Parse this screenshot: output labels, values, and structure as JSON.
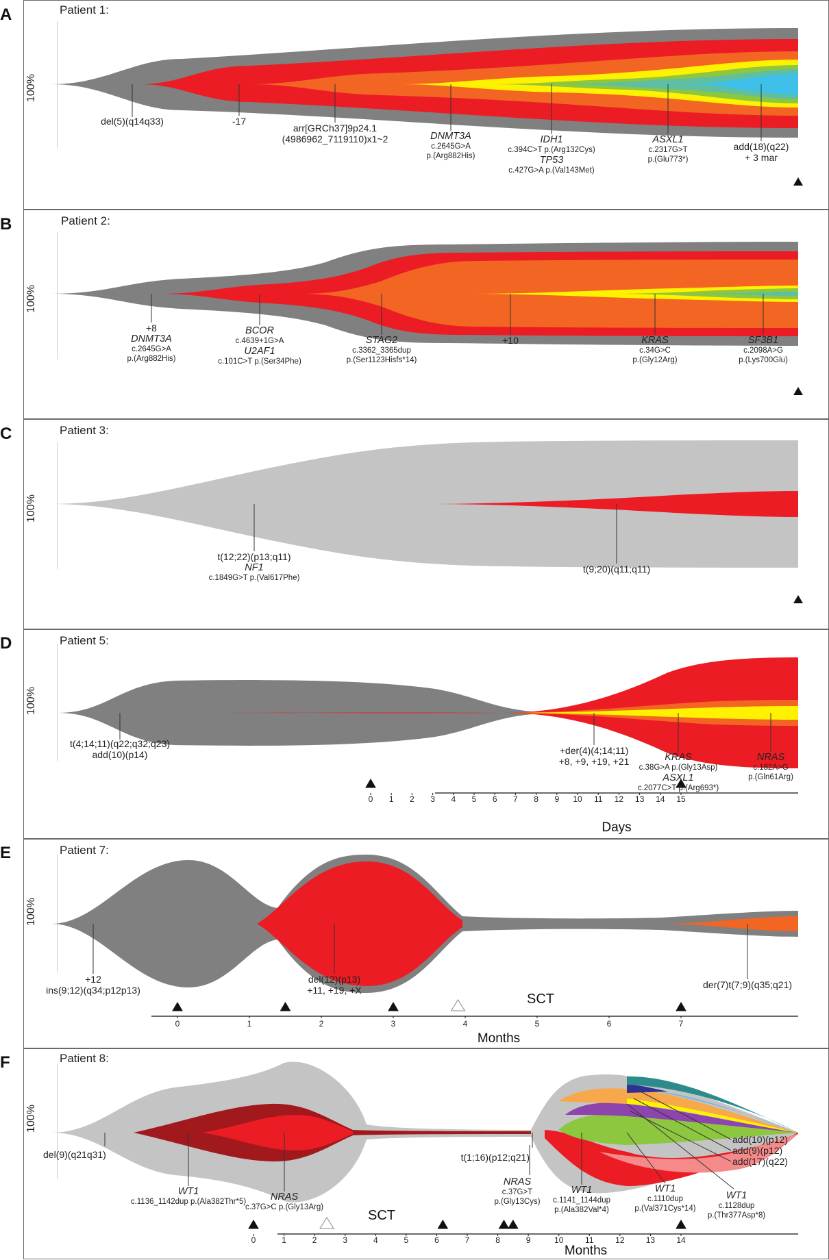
{
  "figure": {
    "panels": [
      {
        "letter": "A",
        "title": "Patient 1:",
        "ylabel": "100%",
        "annotations": [
          {
            "cyto": [
              "del(5)(q14q33)"
            ]
          },
          {
            "cyto": [
              "-17"
            ]
          },
          {
            "cyto": [
              "arr[GRCh37]9p24.1",
              "(4986962_7119110)x1~2"
            ]
          },
          {
            "gene": "DNMT3A",
            "mut": [
              "c.2645G>A",
              "p.(Arg882His)"
            ]
          },
          {
            "gene": "IDH1",
            "mut": [
              "c.394C>T p.(Arg132Cys)"
            ],
            "gene2": "TP53",
            "mut2": [
              "c.427G>A p.(Val143Met)"
            ]
          },
          {
            "gene": "ASXL1",
            "mut": [
              "c.2317G>T",
              "p.(Glu773*)"
            ]
          },
          {
            "cyto": [
              "add(18)(q22)",
              "+ 3 mar"
            ]
          }
        ],
        "markers": [
          {
            "time": 14,
            "type": "filled"
          }
        ]
      },
      {
        "letter": "B",
        "title": "Patient 2:",
        "ylabel": "100%",
        "annotations": [
          {
            "cyto": [
              "+8"
            ],
            "gene": "DNMT3A",
            "mut": [
              "c.2645G>A",
              "p.(Arg882His)"
            ]
          },
          {
            "gene": "BCOR",
            "mut": [
              "c.4639+1G>A"
            ],
            "gene2": "U2AF1",
            "mut2": [
              "c.101C>T p.(Ser34Phe)"
            ]
          },
          {
            "gene": "STAG2",
            "mut": [
              "c.3362_3365dup",
              "p.(Ser1123Hisfs*14)"
            ]
          },
          {
            "cyto": [
              "+10"
            ]
          },
          {
            "gene": "KRAS",
            "mut": [
              "c.34G>C",
              "p.(Gly12Arg)"
            ]
          },
          {
            "gene": "SF3B1",
            "mut": [
              "c.2098A>G",
              "p.(Lys700Glu)"
            ]
          }
        ],
        "markers": [
          {
            "time": 14,
            "type": "filled"
          }
        ]
      },
      {
        "letter": "C",
        "title": "Patient 3:",
        "ylabel": "100%",
        "annotations": [
          {
            "cyto": [
              "t(12;22)(p13;q11)"
            ],
            "gene": "NF1",
            "mut": [
              "c.1849G>T p.(Val617Phe)"
            ]
          },
          {
            "cyto": [
              "t(9;20)(q11;q11)"
            ]
          }
        ],
        "markers": [
          {
            "time": 14,
            "type": "filled"
          }
        ]
      },
      {
        "letter": "D",
        "title": "Patient 5:",
        "ylabel": "100%",
        "annotations": [
          {
            "cyto": [
              "t(4;14;11)(q22;q32;q23)",
              "add(10)(p14)"
            ]
          },
          {
            "cyto": [
              "+der(4)(4;14;11)",
              "+8, +9, +19, +21"
            ]
          },
          {
            "gene": "KRAS",
            "mut": [
              "c.38G>A p.(Gly13Asp)"
            ],
            "gene2": "ASXL1",
            "mut2": [
              "c.2077C>T p.(Arg693*)"
            ]
          },
          {
            "gene": "NRAS",
            "mut": [
              "c.182A>G",
              "p.(Gln61Arg)"
            ]
          }
        ],
        "axis": {
          "label": "Days",
          "ticks": [
            "0",
            "1",
            "2",
            "3",
            "4",
            "5",
            "6",
            "7",
            "8",
            "9",
            "10",
            "11",
            "12",
            "13",
            "14",
            "15"
          ]
        },
        "markers": [
          {
            "time": 0,
            "type": "filled"
          },
          {
            "time": 15,
            "type": "filled"
          }
        ]
      },
      {
        "letter": "E",
        "title": "Patient 7:",
        "ylabel": "100%",
        "annotations": [
          {
            "cyto": [
              "+12",
              "ins(9;12)(q34;p12p13)"
            ]
          },
          {
            "cyto": [
              "del(12)(p13)",
              "+11, +19, +X"
            ]
          },
          {
            "cyto": [
              "der(7)t(7;9)(q35;q21)"
            ]
          }
        ],
        "axis": {
          "label": "Months",
          "ticks": [
            "0",
            "1",
            "2",
            "3",
            "4",
            "5",
            "6",
            "7"
          ]
        },
        "sct_label": "SCT",
        "markers": [
          {
            "time": 0,
            "type": "filled"
          },
          {
            "time": 1.5,
            "type": "filled"
          },
          {
            "time": 3,
            "type": "filled"
          },
          {
            "time": 3.9,
            "type": "open"
          },
          {
            "time": 7,
            "type": "filled"
          }
        ]
      },
      {
        "letter": "F",
        "title": "Patient 8:",
        "ylabel": "100%",
        "annotations": [
          {
            "cyto": [
              "del(9)(q21q31)"
            ]
          },
          {
            "gene": "WT1",
            "mut": [
              "c.1136_1142dup p.(Ala382Thr*5)"
            ]
          },
          {
            "gene": "NRAS",
            "mut": [
              "c.37G>C p.(Gly13Arg)"
            ]
          },
          {
            "cyto": [
              "t(1;16)(p12;q21)"
            ]
          },
          {
            "gene": "NRAS",
            "mut": [
              "c.37G>T",
              "p.(Gly13Cys)"
            ]
          },
          {
            "gene": "WT1",
            "mut": [
              "c.1141_1144dup",
              "p.(Ala382Val*4)"
            ]
          },
          {
            "gene": "WT1",
            "mut": [
              "c.1110dup",
              "p.(Val371Cys*14)"
            ]
          },
          {
            "gene": "WT1",
            "mut": [
              "c.1128dup",
              "p.(Thr377Asp*8)"
            ]
          },
          {
            "cyto": [
              "add(10)(p12)"
            ]
          },
          {
            "cyto": [
              "add(9)(p12)"
            ]
          },
          {
            "cyto": [
              "add(17)(q22)"
            ]
          }
        ],
        "axis": {
          "label": "Months",
          "ticks": [
            "0",
            "1",
            "2",
            "3",
            "4",
            "5",
            "6",
            "7",
            "8",
            "9",
            "10",
            "11",
            "12",
            "13",
            "14"
          ]
        },
        "sct_label": "SCT",
        "markers": [
          {
            "time": 0,
            "type": "filled"
          },
          {
            "time": 2.4,
            "type": "open"
          },
          {
            "time": 6.2,
            "type": "filled"
          },
          {
            "time": 8.2,
            "type": "filled"
          },
          {
            "time": 8.5,
            "type": "filled"
          },
          {
            "time": 14,
            "type": "filled"
          }
        ]
      }
    ],
    "colors": {
      "dark_gray": "#808080",
      "light_gray": "#c4c4c4",
      "red": "#ec1c24",
      "orange": "#f26522",
      "yellow": "#fff200",
      "green": "#8dc63f",
      "teal": "#5fbfa0",
      "cyan": "#3fc0e8",
      "dark_red": "#a1181d",
      "salmon": "#f58a8a",
      "purple": "#8e44ad",
      "blue": "#2e3192",
      "sky": "#6fb7e5",
      "teal_dark": "#2e8b8b",
      "pale_orange": "#f7a84a"
    }
  }
}
